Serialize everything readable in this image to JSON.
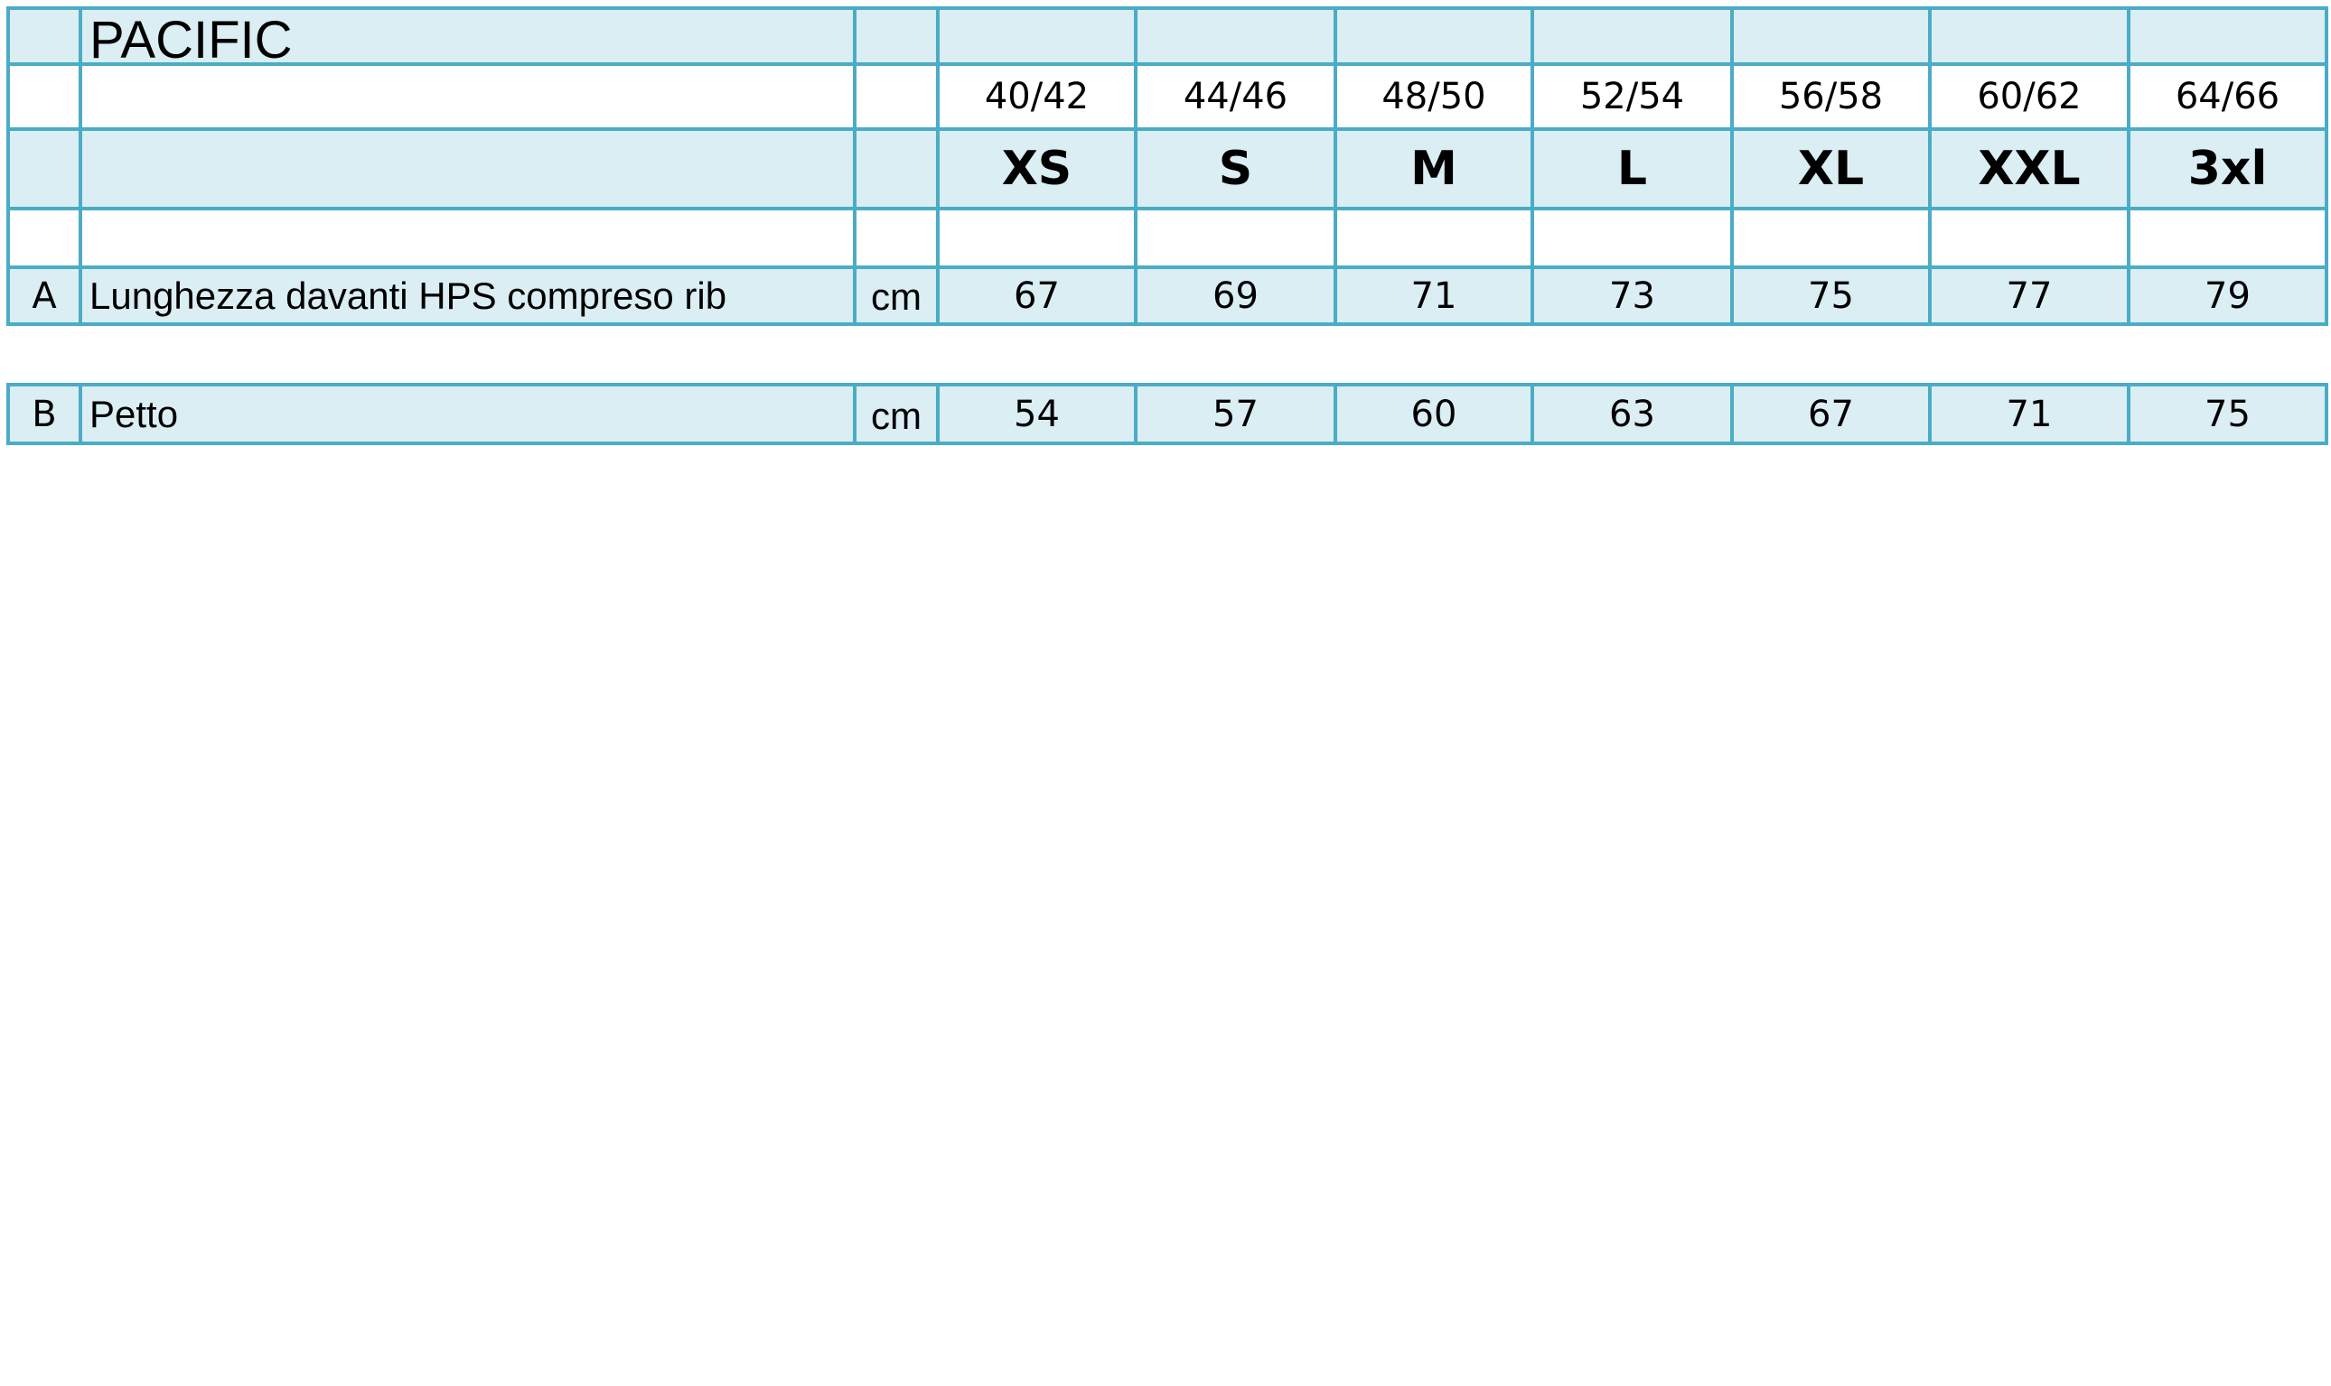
{
  "title": "PACIFIC",
  "sizes": {
    "numbers": [
      "40/42",
      "44/46",
      "48/50",
      "52/54",
      "56/58",
      "60/62",
      "64/66"
    ],
    "letters": [
      "XS",
      "S",
      "M",
      "L",
      "XL",
      "XXL",
      "3xl"
    ]
  },
  "rows": [
    {
      "code": "A",
      "label": "Lunghezza davanti HPS compreso rib",
      "unit": "cm",
      "values": [
        67,
        69,
        71,
        73,
        75,
        77,
        79
      ]
    },
    {
      "code": "B",
      "label": "Petto",
      "unit": "cm",
      "values": [
        54,
        57,
        60,
        63,
        67,
        71,
        75
      ]
    }
  ]
}
